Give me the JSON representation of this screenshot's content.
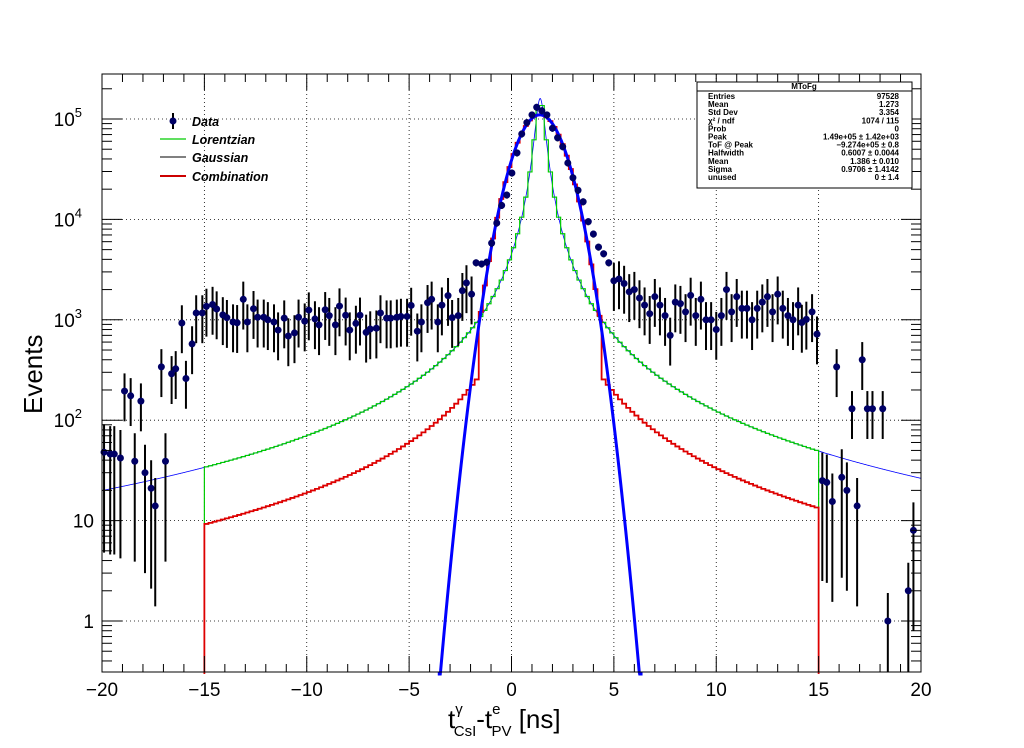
{
  "chart_data": {
    "type": "scatter",
    "title": "",
    "xlabel": {
      "main": "t",
      "sup1": "γ",
      "sub1": "CsI",
      "dash": "-t",
      "sup2": "e",
      "sub2": "PV",
      "unit": " [ns]"
    },
    "ylabel": "Events",
    "xlim": [
      -20,
      20
    ],
    "ylim": [
      0.3,
      280000
    ],
    "y_scale": "log",
    "grid": true,
    "x_ticks": [
      "−20",
      "−15",
      "−10",
      "−5",
      "0",
      "5",
      "10",
      "15",
      "20"
    ],
    "x_tick_values": [
      -20,
      -15,
      -10,
      -5,
      0,
      5,
      10,
      15,
      20
    ],
    "y_ticks": [
      {
        "value": 1,
        "label": "1",
        "exp": ""
      },
      {
        "value": 10,
        "label": "10",
        "exp": ""
      },
      {
        "value": 100,
        "label": "10",
        "exp": "2"
      },
      {
        "value": 1000,
        "label": "10",
        "exp": "3"
      },
      {
        "value": 10000,
        "label": "10",
        "exp": "4"
      },
      {
        "value": 100000,
        "label": "10",
        "exp": "5"
      }
    ],
    "legend": {
      "position": "top-left",
      "entries": [
        {
          "label": "Data",
          "color": "#000066",
          "style": "marker"
        },
        {
          "label": "Lorentzian",
          "color": "#00cc00",
          "style": "line"
        },
        {
          "label": "Gaussian",
          "color": "#000000",
          "style": "line"
        },
        {
          "label": "Combination",
          "color": "#cc0000",
          "style": "line"
        }
      ]
    },
    "colors": {
      "data": "#000066",
      "lorentzian_hist": "#00cc00",
      "fit_curve": "#0000ff",
      "combination": "#dd0000"
    },
    "series": [
      {
        "name": "Data",
        "x": [
          -19.9,
          -19.6,
          -19.4,
          -19.1,
          -18.9,
          -18.6,
          -18.4,
          -18.1,
          -17.9,
          -17.6,
          -17.4,
          -17.1,
          -16.9,
          -16.6,
          -16.4,
          -16.1,
          -15.9,
          -15.6,
          -15.4,
          -15.1,
          -14.9,
          -14.6,
          -14.4,
          -14.1,
          -13.9,
          -13.6,
          -13.4,
          -13.1,
          -12.9,
          -12.6,
          -12.4,
          -12.1,
          -11.9,
          -11.6,
          -11.4,
          -11.1,
          -10.9,
          -10.6,
          -10.4,
          -10.1,
          -9.9,
          -9.6,
          -9.4,
          -9.1,
          -8.9,
          -8.6,
          -8.4,
          -8.1,
          -7.9,
          -7.6,
          -7.4,
          -7.1,
          -6.9,
          -6.6,
          -6.4,
          -6.1,
          -5.9,
          -5.6,
          -5.4,
          -5.1,
          -4.9,
          -4.6,
          -4.4,
          -4.1,
          -3.9,
          -3.6,
          -3.4,
          -3.1,
          -2.9,
          -2.6,
          -2.4,
          -2.2,
          -1.95,
          -1.73,
          -1.46,
          -1.21,
          -0.97,
          -0.72,
          -0.48,
          -0.23,
          0.02,
          0.27,
          0.5,
          0.75,
          1.0,
          1.23,
          1.48,
          1.73,
          2.0,
          2.25,
          2.5,
          2.75,
          3.0,
          3.25,
          3.5,
          3.75,
          4.0,
          4.25,
          4.5,
          4.75,
          5.0,
          5.25,
          5.5,
          5.75,
          6.0,
          6.25,
          6.5,
          6.75,
          7.0,
          7.25,
          7.5,
          7.75,
          8.0,
          8.25,
          8.5,
          8.75,
          9.0,
          9.25,
          9.5,
          9.75,
          10.0,
          10.25,
          10.5,
          10.75,
          11.0,
          11.25,
          11.5,
          11.75,
          12.0,
          12.25,
          12.5,
          12.75,
          13.0,
          13.25,
          13.5,
          13.75,
          14.0,
          14.18,
          14.4,
          14.68,
          14.92,
          15.18,
          15.4,
          15.67,
          15.88,
          16.13,
          16.38,
          16.63,
          16.88,
          17.13,
          17.38,
          17.63,
          18.13,
          18.38,
          19.38,
          19.63
        ],
        "y": [
          48,
          46,
          46,
          42,
          195,
          175,
          39,
          155,
          30,
          21,
          14,
          340,
          39,
          290,
          325,
          930,
          260,
          575,
          1170,
          1170,
          1360,
          1420,
          1280,
          1120,
          1050,
          950,
          935,
          1600,
          950,
          1290,
          1060,
          1060,
          1000,
          950,
          790,
          1040,
          690,
          740,
          1060,
          970,
          1250,
          1020,
          890,
          1260,
          1100,
          890,
          1370,
          1110,
          790,
          920,
          1110,
          750,
          810,
          825,
          1170,
          1040,
          1040,
          1060,
          1080,
          1080,
          1390,
          770,
          950,
          1480,
          1600,
          950,
          1400,
          1740,
          1050,
          1100,
          1950,
          2330,
          1800,
          3700,
          3600,
          3750,
          5800,
          9200,
          13800,
          17500,
          29000,
          46000,
          71000,
          92000,
          110000,
          131000,
          121000,
          110000,
          81000,
          65000,
          53000,
          36500,
          26000,
          19500,
          15000,
          9500,
          7150,
          5300,
          4550,
          3700,
          2450,
          2550,
          2300,
          1900,
          2000,
          1650,
          1400,
          1150,
          1700,
          1400,
          1100,
          700,
          1500,
          1450,
          1200,
          1750,
          1100,
          1600,
          1000,
          1000,
          800,
          1100,
          2000,
          1200,
          1700,
          1300,
          1300,
          1000,
          1300,
          1500,
          1700,
          1200,
          1800,
          1300,
          1100,
          1000,
          1400,
          940,
          1010,
          1200,
          720,
          25,
          24,
          15.5,
          340,
          27,
          20,
          130,
          14,
          400,
          130,
          130,
          130,
          1,
          2,
          8
        ]
      },
      {
        "name": "Lorentzian",
        "type": "step"
      },
      {
        "name": "Gaussian",
        "type": "line"
      },
      {
        "name": "Combination",
        "type": "step"
      }
    ]
  },
  "stats_box": {
    "title": "MToFg",
    "rows": [
      {
        "label": "Entries",
        "value": "97528"
      },
      {
        "label": "Mean",
        "value": "1.273"
      },
      {
        "label": "Std Dev",
        "value": "3.354"
      },
      {
        "label": "χ² / ndf",
        "value": "1074 / 115"
      },
      {
        "label": "Prob",
        "value": "0"
      },
      {
        "label": "Peak",
        "value": "1.49e+05 ± 1.42e+03"
      },
      {
        "label": "ToF @ Peak",
        "value": "−9.274e+05 ± 0.8"
      },
      {
        "label": "Halfwidth",
        "value": "0.6007 ± 0.0044"
      },
      {
        "label": "Mean",
        "value": "1.386 ± 0.010"
      },
      {
        "label": "Sigma",
        "value": "0.9706 ± 1.4142"
      },
      {
        "label": "unused",
        "value": "0 ± 1.4"
      }
    ]
  }
}
